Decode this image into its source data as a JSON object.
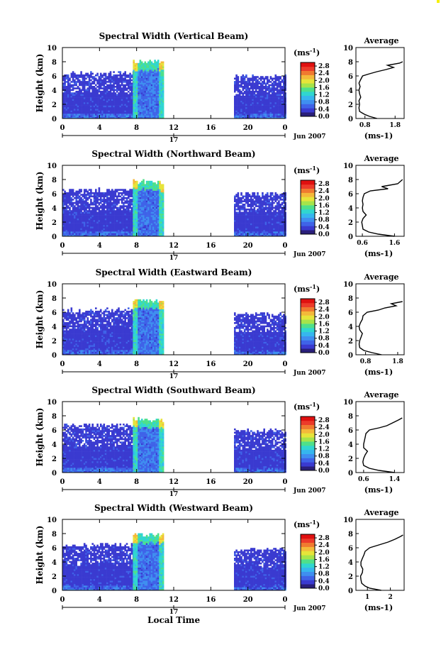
{
  "figure": {
    "xlabel": "Local Time",
    "date_label": "Jun 2007",
    "day_label": "17",
    "avg_title": "Average",
    "unit_label": "(ms",
    "unit_sup": "-1",
    "unit_close": ")",
    "ylabel": "Height (km)",
    "colors": {
      "scale": [
        "#2a1f7a",
        "#3a3ad0",
        "#3f63e8",
        "#3f8ff0",
        "#36b6ee",
        "#30d6d0",
        "#4fe08a",
        "#a6e44a",
        "#e6e43a",
        "#f4b93a",
        "#f07a30",
        "#ec3b2a",
        "#e01010"
      ],
      "mark_color": "#f5f000",
      "line_color": "#000000"
    }
  },
  "chart_data": [
    {
      "type": "heatmap",
      "title": "Spectral Width (Vertical Beam)",
      "xlabel": "Local Time",
      "ylabel": "Height (km)",
      "x_ticks": [
        "0",
        "4",
        "8",
        "12",
        "16",
        "20",
        "0"
      ],
      "y_ticks": [
        "0",
        "2",
        "4",
        "6",
        "8",
        "10"
      ],
      "xlim": [
        0,
        24
      ],
      "ylim": [
        0,
        10
      ],
      "colorbar_ticks": [
        "0.0",
        "0.4",
        "0.8",
        "1.2",
        "1.6",
        "2.0",
        "2.4",
        "2.8"
      ],
      "colorbar_range": [
        0,
        3.0
      ],
      "data_segments": [
        [
          0,
          7.6,
          6.3
        ],
        [
          7.6,
          10.9,
          7.9
        ],
        [
          18.5,
          24,
          5.9
        ]
      ],
      "profile": {
        "title": "Average",
        "xlabel": "(ms-1)",
        "x_ticks": [
          "0.8",
          "1.8"
        ],
        "xlim": [
          0.5,
          2.1
        ],
        "ylim": [
          0,
          10
        ],
        "y_ticks": [
          "0",
          "2",
          "4",
          "6",
          "8",
          "10"
        ],
        "points": [
          [
            1.2,
            0
          ],
          [
            0.95,
            0.3
          ],
          [
            0.78,
            0.6
          ],
          [
            0.62,
            1.0
          ],
          [
            0.6,
            1.5
          ],
          [
            0.62,
            2.0
          ],
          [
            0.6,
            2.5
          ],
          [
            0.66,
            3.0
          ],
          [
            0.62,
            3.5
          ],
          [
            0.6,
            4.0
          ],
          [
            0.64,
            4.5
          ],
          [
            0.6,
            5.0
          ],
          [
            0.66,
            5.5
          ],
          [
            0.72,
            6.0
          ],
          [
            0.95,
            6.3
          ],
          [
            1.2,
            6.6
          ],
          [
            1.5,
            6.9
          ],
          [
            1.75,
            7.2
          ],
          [
            1.55,
            7.5
          ],
          [
            1.95,
            7.8
          ],
          [
            2.05,
            8.0
          ]
        ]
      }
    },
    {
      "type": "heatmap",
      "title": "Spectral Width (Northward Beam)",
      "xlabel": "Local Time",
      "ylabel": "Height (km)",
      "x_ticks": [
        "0",
        "4",
        "8",
        "12",
        "16",
        "20",
        "0"
      ],
      "y_ticks": [
        "0",
        "2",
        "4",
        "6",
        "8",
        "10"
      ],
      "xlim": [
        0,
        24
      ],
      "ylim": [
        0,
        10
      ],
      "colorbar_ticks": [
        "0.0",
        "0.4",
        "0.8",
        "1.2",
        "1.6",
        "2.0",
        "2.4",
        "2.8"
      ],
      "colorbar_range": [
        0,
        3.0
      ],
      "data_segments": [
        [
          0,
          7.6,
          6.4
        ],
        [
          7.6,
          10.9,
          7.6
        ],
        [
          18.5,
          24,
          5.9
        ]
      ],
      "profile": {
        "title": "Average",
        "xlabel": "(ms-1)",
        "x_ticks": [
          "0.6",
          "1.6"
        ],
        "xlim": [
          0.4,
          1.9
        ],
        "ylim": [
          0,
          10
        ],
        "y_ticks": [
          "0",
          "2",
          "4",
          "6",
          "8",
          "10"
        ],
        "points": [
          [
            1.6,
            0
          ],
          [
            1.1,
            0.3
          ],
          [
            0.8,
            0.6
          ],
          [
            0.62,
            1.0
          ],
          [
            0.6,
            1.5
          ],
          [
            0.58,
            2.0
          ],
          [
            0.62,
            2.5
          ],
          [
            0.72,
            3.0
          ],
          [
            0.62,
            3.5
          ],
          [
            0.6,
            4.0
          ],
          [
            0.62,
            4.5
          ],
          [
            0.6,
            5.0
          ],
          [
            0.62,
            5.5
          ],
          [
            0.66,
            6.0
          ],
          [
            0.85,
            6.4
          ],
          [
            1.4,
            6.7
          ],
          [
            1.2,
            7.0
          ],
          [
            1.7,
            7.4
          ],
          [
            1.8,
            7.8
          ],
          [
            1.85,
            8.0
          ]
        ]
      }
    },
    {
      "type": "heatmap",
      "title": "Spectral Width (Eastward Beam)",
      "xlabel": "Local Time",
      "ylabel": "Height (km)",
      "x_ticks": [
        "0",
        "4",
        "8",
        "12",
        "16",
        "20",
        "0"
      ],
      "y_ticks": [
        "0",
        "2",
        "4",
        "6",
        "8",
        "10"
      ],
      "xlim": [
        0,
        24
      ],
      "ylim": [
        0,
        10
      ],
      "colorbar_ticks": [
        "0.0",
        "0.4",
        "0.8",
        "1.2",
        "1.6",
        "2.0",
        "2.4",
        "2.8"
      ],
      "colorbar_range": [
        0,
        3.0
      ],
      "data_segments": [
        [
          0,
          7.6,
          6.2
        ],
        [
          7.6,
          10.9,
          7.6
        ],
        [
          18.5,
          24,
          5.6
        ]
      ],
      "profile": {
        "title": "Average",
        "xlabel": "(ms-1)",
        "x_ticks": [
          "0.8",
          "1.8"
        ],
        "xlim": [
          0.5,
          2.0
        ],
        "ylim": [
          0,
          10
        ],
        "y_ticks": [
          "0",
          "2",
          "4",
          "6",
          "8",
          "10"
        ],
        "points": [
          [
            1.3,
            0
          ],
          [
            1.0,
            0.3
          ],
          [
            0.75,
            0.6
          ],
          [
            0.62,
            1.0
          ],
          [
            0.6,
            1.5
          ],
          [
            0.62,
            2.0
          ],
          [
            0.66,
            2.5
          ],
          [
            0.7,
            3.0
          ],
          [
            0.62,
            3.5
          ],
          [
            0.6,
            4.0
          ],
          [
            0.64,
            4.5
          ],
          [
            0.7,
            5.0
          ],
          [
            0.72,
            5.5
          ],
          [
            0.85,
            6.0
          ],
          [
            1.2,
            6.3
          ],
          [
            1.4,
            6.6
          ],
          [
            1.75,
            6.9
          ],
          [
            1.6,
            7.2
          ],
          [
            1.95,
            7.5
          ]
        ]
      }
    },
    {
      "type": "heatmap",
      "title": "Spectral Width (Southward Beam)",
      "xlabel": "Local Time",
      "ylabel": "Height (km)",
      "x_ticks": [
        "0",
        "4",
        "8",
        "12",
        "16",
        "20",
        "0"
      ],
      "y_ticks": [
        "0",
        "2",
        "4",
        "6",
        "8",
        "10"
      ],
      "xlim": [
        0,
        24
      ],
      "ylim": [
        0,
        10
      ],
      "colorbar_ticks": [
        "0.0",
        "0.4",
        "0.8",
        "1.2",
        "1.6",
        "2.0",
        "2.4",
        "2.8"
      ],
      "colorbar_range": [
        0,
        3.0
      ],
      "data_segments": [
        [
          0,
          7.6,
          6.6
        ],
        [
          7.6,
          10.9,
          7.4
        ],
        [
          18.5,
          24,
          5.8
        ]
      ],
      "profile": {
        "title": "Average",
        "xlabel": "(ms-1)",
        "x_ticks": [
          "0.6",
          "1.4"
        ],
        "xlim": [
          0.4,
          1.65
        ],
        "ylim": [
          0,
          10
        ],
        "y_ticks": [
          "0",
          "2",
          "4",
          "6",
          "8",
          "10"
        ],
        "points": [
          [
            1.4,
            0
          ],
          [
            1.0,
            0.3
          ],
          [
            0.75,
            0.6
          ],
          [
            0.6,
            1.0
          ],
          [
            0.58,
            1.5
          ],
          [
            0.6,
            2.0
          ],
          [
            0.64,
            2.5
          ],
          [
            0.7,
            3.0
          ],
          [
            0.6,
            3.5
          ],
          [
            0.6,
            4.0
          ],
          [
            0.62,
            4.5
          ],
          [
            0.64,
            5.0
          ],
          [
            0.66,
            5.5
          ],
          [
            0.75,
            6.0
          ],
          [
            1.0,
            6.3
          ],
          [
            1.2,
            6.6
          ],
          [
            1.35,
            7.0
          ],
          [
            1.5,
            7.4
          ],
          [
            1.6,
            7.7
          ]
        ]
      }
    },
    {
      "type": "heatmap",
      "title": "Spectral Width (Westward Beam)",
      "xlabel": "Local Time",
      "ylabel": "Height (km)",
      "x_ticks": [
        "0",
        "4",
        "8",
        "12",
        "16",
        "20",
        "0"
      ],
      "y_ticks": [
        "0",
        "2",
        "4",
        "6",
        "8",
        "10"
      ],
      "xlim": [
        0,
        24
      ],
      "ylim": [
        0,
        10
      ],
      "colorbar_ticks": [
        "0.0",
        "0.4",
        "0.8",
        "1.2",
        "1.6",
        "2.0",
        "2.4",
        "2.8"
      ],
      "colorbar_range": [
        0,
        3.0
      ],
      "data_segments": [
        [
          0,
          7.6,
          6.3
        ],
        [
          7.6,
          10.9,
          7.7
        ],
        [
          18.5,
          24,
          5.7
        ]
      ],
      "profile": {
        "title": "Average",
        "xlabel": "(ms-1)",
        "x_ticks": [
          "1",
          "2"
        ],
        "xlim": [
          0.5,
          2.6
        ],
        "ylim": [
          0,
          10
        ],
        "y_ticks": [
          "0",
          "2",
          "4",
          "6",
          "8",
          "10"
        ],
        "points": [
          [
            1.6,
            0
          ],
          [
            1.1,
            0.3
          ],
          [
            0.9,
            0.6
          ],
          [
            0.75,
            1.0
          ],
          [
            0.72,
            1.5
          ],
          [
            0.7,
            2.0
          ],
          [
            0.78,
            2.5
          ],
          [
            0.8,
            3.0
          ],
          [
            0.72,
            3.5
          ],
          [
            0.72,
            4.0
          ],
          [
            0.78,
            4.5
          ],
          [
            0.85,
            5.0
          ],
          [
            0.9,
            5.5
          ],
          [
            1.1,
            6.0
          ],
          [
            1.5,
            6.4
          ],
          [
            1.9,
            6.8
          ],
          [
            2.2,
            7.2
          ],
          [
            2.45,
            7.6
          ],
          [
            2.55,
            7.8
          ]
        ]
      }
    }
  ]
}
